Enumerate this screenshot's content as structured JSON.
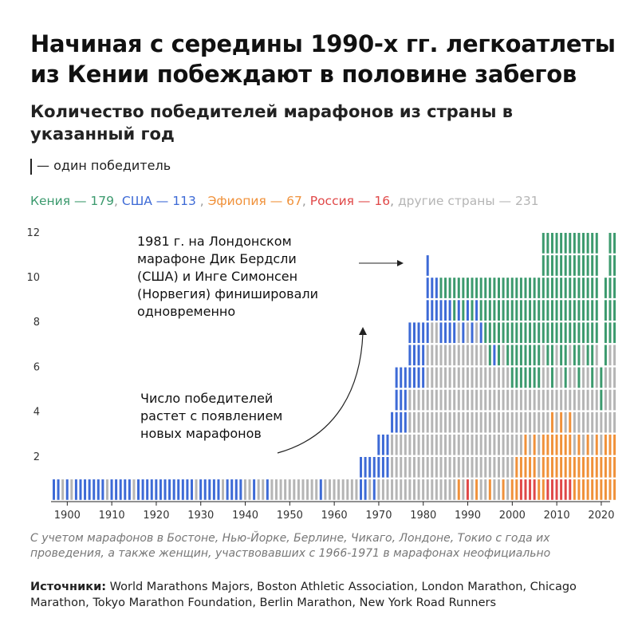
{
  "title": "Начиная с середины 1990-х гг. легкоатлеты из Кении побеждают в половине забегов",
  "subtitle": "Количество победителей марафонов из страны в указанный год",
  "unit_legend": "— один победитель",
  "legend": [
    {
      "label": "Кения — 179",
      "color": "#3c9a6e"
    },
    {
      "label": ", ",
      "color": "#999999"
    },
    {
      "label": "США — 113",
      "color": "#3d6ad6"
    },
    {
      "label": " , ",
      "color": "#999999"
    },
    {
      "label": "Эфиопия — 67",
      "color": "#f0913a"
    },
    {
      "label": ", ",
      "color": "#999999"
    },
    {
      "label": "Россия — 16",
      "color": "#e04848"
    },
    {
      "label": ", ",
      "color": "#999999"
    },
    {
      "label": "другие страны — 231",
      "color": "#b5b5b5"
    }
  ],
  "annotation_1981": "1981 г. на Лондонском марафоне Дик Бердсли (США) и Инге Симонсен (Норвегия) финишировали одновременно",
  "annotation_growth": "Число победителей растет с появлением новых марафонов",
  "note": "С учетом марафонов в Бостоне, Нью-Йорке, Берлине, Чикаго, Лондоне, Токио с года их проведения, а также женщин, участвовавших с 1966-1971 в марафонах неофициально",
  "sources_label": "Источники:",
  "sources_text": " World Marathons Majors, Boston Athletic Association, London Marathon, Chicago Marathon, Tokyo Marathon Foundation, Berlin Marathon, New York Road Runners",
  "chart_data": {
    "type": "bar",
    "stacked": true,
    "x_label": "",
    "y_label": "",
    "xlim": [
      1897,
      2023
    ],
    "ylim": [
      0,
      12
    ],
    "x_ticks": [
      1900,
      1910,
      1920,
      1930,
      1940,
      1950,
      1960,
      1970,
      1980,
      1990,
      2000,
      2010,
      2020
    ],
    "y_ticks": [
      2,
      4,
      6,
      8,
      10,
      12
    ],
    "series_colors": {
      "Кения": "#3c9a6e",
      "США": "#3d6ad6",
      "Эфиопия": "#f0913a",
      "Россия": "#e04848",
      "другие страны": "#b5b5b5"
    },
    "stack_order_bottom_to_top": [
      "Россия",
      "Эфиопия",
      "другие страны",
      "США",
      "Кения"
    ],
    "totals_by_era": [
      {
        "years": [
          1897,
          1965
        ],
        "total": 1
      },
      {
        "years": [
          1966,
          1969
        ],
        "total": 2
      },
      {
        "years": [
          1970,
          1972
        ],
        "total": 3
      },
      {
        "years": [
          1973,
          1973
        ],
        "total": 4
      },
      {
        "years": [
          1974,
          1976
        ],
        "total": 6
      },
      {
        "years": [
          1977,
          1980
        ],
        "total": 8
      },
      {
        "years": [
          1981,
          1981
        ],
        "total": 11
      },
      {
        "years": [
          1982,
          2006
        ],
        "total": 10
      },
      {
        "years": [
          2007,
          2019
        ],
        "total": 12
      },
      {
        "years": [
          2020,
          2020
        ],
        "total": 6
      },
      {
        "years": [
          2021,
          2021
        ],
        "total": 10
      },
      {
        "years": [
          2022,
          2023
        ],
        "total": 12
      }
    ],
    "us_share_before_1966": "majority of years"
  }
}
